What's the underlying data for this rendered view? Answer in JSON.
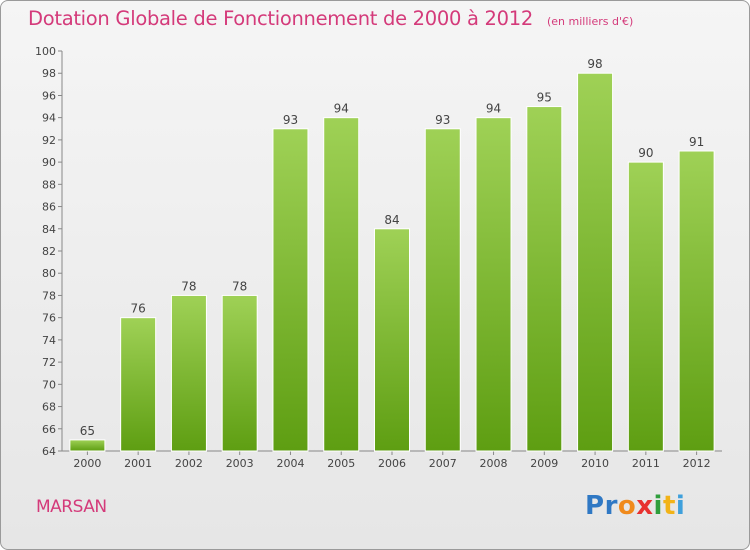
{
  "chart_title": "Dotation Globale de Fonctionnement de 2000 à 2012",
  "chart_unit": "(en milliers d'€)",
  "commune": "MARSAN",
  "logo": {
    "letters": [
      "P",
      "r",
      "o",
      "x",
      "i",
      "t",
      "i"
    ],
    "colors": [
      "#2f78c4",
      "#2f78c4",
      "#f08a1c",
      "#e8312f",
      "#2f9e3c",
      "#f2b318",
      "#3fa0dc"
    ]
  },
  "colors": {
    "bar_top": "#9fd156",
    "bar_bottom": "#5e9e12",
    "accent": "#d43a7a"
  },
  "chart_data": {
    "type": "bar",
    "categories": [
      "2000",
      "2001",
      "2002",
      "2003",
      "2004",
      "2005",
      "2006",
      "2007",
      "2008",
      "2009",
      "2010",
      "2011",
      "2012"
    ],
    "values": [
      65,
      76,
      78,
      78,
      93,
      94,
      84,
      93,
      94,
      95,
      98,
      90,
      91
    ],
    "ylim": [
      64,
      100
    ],
    "yticks": [
      64,
      66,
      68,
      70,
      72,
      74,
      76,
      78,
      80,
      82,
      84,
      86,
      88,
      90,
      92,
      94,
      96,
      98,
      100
    ],
    "grid": false,
    "data_labels": true
  }
}
